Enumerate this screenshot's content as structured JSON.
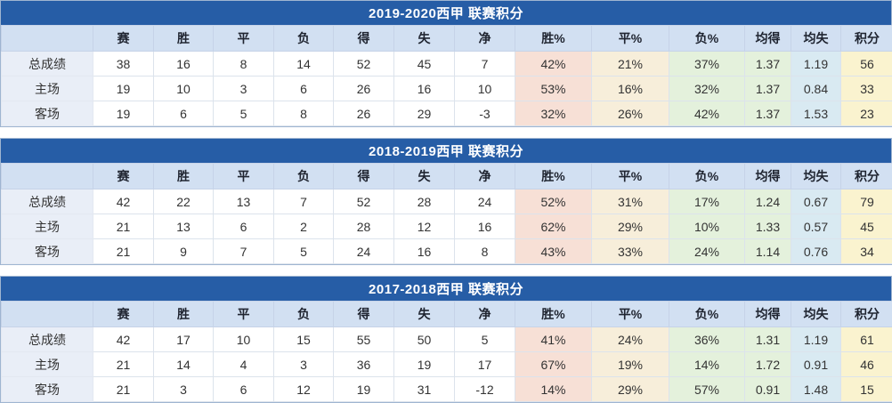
{
  "colors": {
    "title_bar_bg": "#265da6",
    "title_text": "#ffffff",
    "header_bg": "#d2e0f2",
    "label_col_bg": "#e9eef7",
    "win_pct_bg": "#f7e0d6",
    "draw_pct_bg": "#f7eeda",
    "loss_pct_bg": "#e4f1dc",
    "avg_for_bg": "#e4f1dc",
    "avg_against_bg": "#d9eaf2",
    "points_bg": "#faf3cf",
    "text": "#333333"
  },
  "column_keys": [
    "row-label",
    "matches",
    "wins",
    "draws",
    "losses",
    "goals-for",
    "goals-against",
    "goal-diff",
    "win-pct",
    "draw-pct",
    "loss-pct",
    "avg-goals-for",
    "avg-goals-against",
    "points"
  ],
  "row_keys": [
    "total",
    "home",
    "away"
  ],
  "chart_data": [
    {
      "type": "table",
      "title": "2019-2020西甲 联赛积分",
      "columns": [
        "",
        "赛",
        "胜",
        "平",
        "负",
        "得",
        "失",
        "净",
        "胜%",
        "平%",
        "负%",
        "均得",
        "均失",
        "积分"
      ],
      "rows": [
        [
          "总成绩",
          "38",
          "16",
          "8",
          "14",
          "52",
          "45",
          "7",
          "42%",
          "21%",
          "37%",
          "1.37",
          "1.19",
          "56"
        ],
        [
          "主场",
          "19",
          "10",
          "3",
          "6",
          "26",
          "16",
          "10",
          "53%",
          "16%",
          "32%",
          "1.37",
          "0.84",
          "33"
        ],
        [
          "客场",
          "19",
          "6",
          "5",
          "8",
          "26",
          "29",
          "-3",
          "32%",
          "26%",
          "42%",
          "1.37",
          "1.53",
          "23"
        ]
      ]
    },
    {
      "type": "table",
      "title": "2018-2019西甲 联赛积分",
      "columns": [
        "",
        "赛",
        "胜",
        "平",
        "负",
        "得",
        "失",
        "净",
        "胜%",
        "平%",
        "负%",
        "均得",
        "均失",
        "积分"
      ],
      "rows": [
        [
          "总成绩",
          "42",
          "22",
          "13",
          "7",
          "52",
          "28",
          "24",
          "52%",
          "31%",
          "17%",
          "1.24",
          "0.67",
          "79"
        ],
        [
          "主场",
          "21",
          "13",
          "6",
          "2",
          "28",
          "12",
          "16",
          "62%",
          "29%",
          "10%",
          "1.33",
          "0.57",
          "45"
        ],
        [
          "客场",
          "21",
          "9",
          "7",
          "5",
          "24",
          "16",
          "8",
          "43%",
          "33%",
          "24%",
          "1.14",
          "0.76",
          "34"
        ]
      ]
    },
    {
      "type": "table",
      "title": "2017-2018西甲 联赛积分",
      "columns": [
        "",
        "赛",
        "胜",
        "平",
        "负",
        "得",
        "失",
        "净",
        "胜%",
        "平%",
        "负%",
        "均得",
        "均失",
        "积分"
      ],
      "rows": [
        [
          "总成绩",
          "42",
          "17",
          "10",
          "15",
          "55",
          "50",
          "5",
          "41%",
          "24%",
          "36%",
          "1.31",
          "1.19",
          "61"
        ],
        [
          "主场",
          "21",
          "14",
          "4",
          "3",
          "36",
          "19",
          "17",
          "67%",
          "19%",
          "14%",
          "1.72",
          "0.91",
          "46"
        ],
        [
          "客场",
          "21",
          "3",
          "6",
          "12",
          "19",
          "31",
          "-12",
          "14%",
          "29%",
          "57%",
          "0.91",
          "1.48",
          "15"
        ]
      ]
    }
  ]
}
